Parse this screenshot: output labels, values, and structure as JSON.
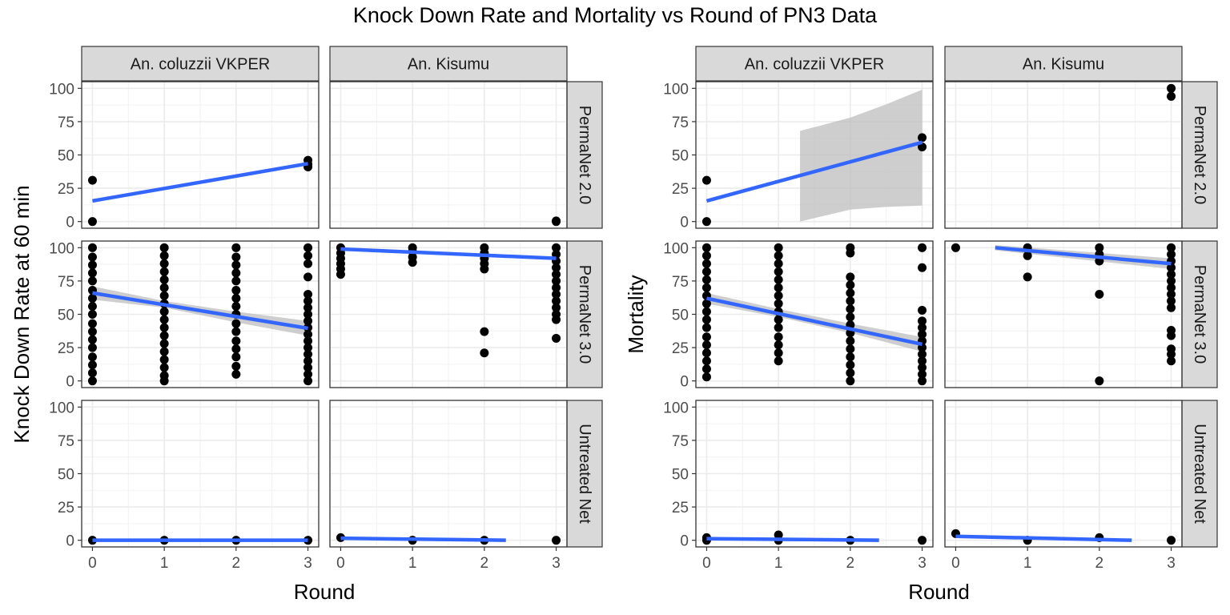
{
  "title": "Knock Down Rate and Mortality vs Round of PN3 Data",
  "colors": {
    "fit_line": "#3366FF",
    "ribbon": "#BEBEBE",
    "point": "#000000",
    "strip_bg": "#D9D9D9",
    "grid": "#EBEBEB"
  },
  "chart_data": [
    {
      "type": "scatter",
      "title": "",
      "xlabel": "Round",
      "ylabel": "Knock Down Rate at 60 min",
      "xlim": [
        0,
        3
      ],
      "ylim": [
        0,
        100
      ],
      "x_ticks": [
        0,
        1,
        2,
        3
      ],
      "y_ticks": [
        0,
        25,
        50,
        75,
        100
      ],
      "grid": true,
      "facet_columns": [
        "An. coluzzii VKPER",
        "An. Kisumu"
      ],
      "facet_rows": [
        "PermaNet 2.0",
        "PermaNet 3.0",
        "Untreated Net"
      ],
      "panels": [
        {
          "row": "PermaNet 2.0",
          "col": "An. coluzzii VKPER",
          "points": [
            [
              0,
              31
            ],
            [
              0,
              0
            ],
            [
              3,
              46
            ],
            [
              3,
              43
            ],
            [
              3,
              41
            ]
          ],
          "fit": {
            "x": [
              0,
              3
            ],
            "y": [
              15.5,
              43.5
            ]
          }
        },
        {
          "row": "PermaNet 2.0",
          "col": "An. Kisumu",
          "points": [
            [
              3,
              0
            ],
            [
              3,
              0.5
            ]
          ],
          "fit": null
        },
        {
          "row": "PermaNet 3.0",
          "col": "An. coluzzii VKPER",
          "points": [
            [
              0,
              0
            ],
            [
              0,
              6
            ],
            [
              0,
              12
            ],
            [
              0,
              18
            ],
            [
              0,
              25
            ],
            [
              0,
              31
            ],
            [
              0,
              37
            ],
            [
              0,
              43
            ],
            [
              0,
              50
            ],
            [
              0,
              56
            ],
            [
              0,
              62
            ],
            [
              0,
              68
            ],
            [
              0,
              75
            ],
            [
              0,
              81
            ],
            [
              0,
              87
            ],
            [
              0,
              93
            ],
            [
              0,
              100
            ],
            [
              1,
              0
            ],
            [
              1,
              4
            ],
            [
              1,
              10
            ],
            [
              1,
              16
            ],
            [
              1,
              22
            ],
            [
              1,
              28
            ],
            [
              1,
              34
            ],
            [
              1,
              40
            ],
            [
              1,
              46
            ],
            [
              1,
              52
            ],
            [
              1,
              58
            ],
            [
              1,
              64
            ],
            [
              1,
              70
            ],
            [
              1,
              76
            ],
            [
              1,
              82
            ],
            [
              1,
              88
            ],
            [
              1,
              94
            ],
            [
              1,
              100
            ],
            [
              2,
              5
            ],
            [
              2,
              11
            ],
            [
              2,
              18
            ],
            [
              2,
              24
            ],
            [
              2,
              30
            ],
            [
              2,
              37
            ],
            [
              2,
              43
            ],
            [
              2,
              50
            ],
            [
              2,
              56
            ],
            [
              2,
              62
            ],
            [
              2,
              68
            ],
            [
              2,
              75
            ],
            [
              2,
              81
            ],
            [
              2,
              87
            ],
            [
              2,
              93
            ],
            [
              2,
              100
            ],
            [
              3,
              0
            ],
            [
              3,
              5
            ],
            [
              3,
              10
            ],
            [
              3,
              15
            ],
            [
              3,
              20
            ],
            [
              3,
              25
            ],
            [
              3,
              30
            ],
            [
              3,
              35
            ],
            [
              3,
              40
            ],
            [
              3,
              45
            ],
            [
              3,
              50
            ],
            [
              3,
              55
            ],
            [
              3,
              60
            ],
            [
              3,
              65
            ],
            [
              3,
              78
            ],
            [
              3,
              88
            ],
            [
              3,
              94
            ],
            [
              3,
              100
            ]
          ],
          "fit": {
            "x": [
              0,
              3
            ],
            "y": [
              66,
              39.5
            ]
          },
          "ribbon": {
            "x": [
              0,
              1,
              2,
              3
            ],
            "lower": [
              61,
              55,
              44,
              34
            ],
            "upper": [
              71,
              60,
              52,
              45
            ]
          }
        },
        {
          "row": "PermaNet 3.0",
          "col": "An. Kisumu",
          "points": [
            [
              0,
              80
            ],
            [
              0,
              84
            ],
            [
              0,
              88
            ],
            [
              0,
              92
            ],
            [
              0,
              96
            ],
            [
              0,
              100
            ],
            [
              1,
              89
            ],
            [
              1,
              93
            ],
            [
              1,
              97
            ],
            [
              1,
              100
            ],
            [
              2,
              21
            ],
            [
              2,
              37
            ],
            [
              2,
              84
            ],
            [
              2,
              88
            ],
            [
              2,
              92
            ],
            [
              2,
              96
            ],
            [
              2,
              100
            ],
            [
              3,
              32
            ],
            [
              3,
              46
            ],
            [
              3,
              50
            ],
            [
              3,
              55
            ],
            [
              3,
              60
            ],
            [
              3,
              65
            ],
            [
              3,
              70
            ],
            [
              3,
              75
            ],
            [
              3,
              80
            ],
            [
              3,
              85
            ],
            [
              3,
              90
            ],
            [
              3,
              95
            ],
            [
              3,
              100
            ]
          ],
          "fit": {
            "x": [
              0,
              3
            ],
            "y": [
              99,
              92
            ]
          }
        },
        {
          "row": "Untreated Net",
          "col": "An. coluzzii VKPER",
          "points": [
            [
              0,
              0
            ],
            [
              1,
              0
            ],
            [
              2,
              0
            ],
            [
              3,
              0
            ]
          ],
          "fit": {
            "x": [
              0,
              3
            ],
            "y": [
              0,
              0
            ]
          }
        },
        {
          "row": "Untreated Net",
          "col": "An. Kisumu",
          "points": [
            [
              0,
              2
            ],
            [
              1,
              0
            ],
            [
              2,
              0
            ],
            [
              3,
              0
            ]
          ],
          "fit": {
            "x": [
              0,
              2.3
            ],
            "y": [
              1.5,
              0
            ]
          }
        }
      ]
    },
    {
      "type": "scatter",
      "title": "",
      "xlabel": "Round",
      "ylabel": "Mortality",
      "xlim": [
        0,
        3
      ],
      "ylim": [
        0,
        100
      ],
      "x_ticks": [
        0,
        1,
        2,
        3
      ],
      "y_ticks": [
        0,
        25,
        50,
        75,
        100
      ],
      "grid": true,
      "facet_columns": [
        "An. coluzzii VKPER",
        "An. Kisumu"
      ],
      "facet_rows": [
        "PermaNet 2.0",
        "PermaNet 3.0",
        "Untreated Net"
      ],
      "panels": [
        {
          "row": "PermaNet 2.0",
          "col": "An. coluzzii VKPER",
          "points": [
            [
              0,
              31
            ],
            [
              0,
              0
            ],
            [
              3,
              63
            ],
            [
              3,
              56
            ]
          ],
          "fit": {
            "x": [
              0,
              3
            ],
            "y": [
              15.5,
              59.5
            ]
          },
          "ribbon": {
            "x": [
              1.3,
              2,
              2.5,
              3
            ],
            "lower": [
              0,
              9,
              11,
              12
            ],
            "upper": [
              68,
              78,
              88,
              99
            ]
          }
        },
        {
          "row": "PermaNet 2.0",
          "col": "An. Kisumu",
          "points": [
            [
              3,
              100
            ],
            [
              3,
              94
            ]
          ],
          "fit": null
        },
        {
          "row": "PermaNet 3.0",
          "col": "An. coluzzii VKPER",
          "points": [
            [
              0,
              3
            ],
            [
              0,
              9
            ],
            [
              0,
              15
            ],
            [
              0,
              21
            ],
            [
              0,
              27
            ],
            [
              0,
              33
            ],
            [
              0,
              40
            ],
            [
              0,
              46
            ],
            [
              0,
              52
            ],
            [
              0,
              58
            ],
            [
              0,
              64
            ],
            [
              0,
              70
            ],
            [
              0,
              76
            ],
            [
              0,
              82
            ],
            [
              0,
              88
            ],
            [
              0,
              94
            ],
            [
              0,
              100
            ],
            [
              1,
              15
            ],
            [
              1,
              21
            ],
            [
              1,
              27
            ],
            [
              1,
              33
            ],
            [
              1,
              40
            ],
            [
              1,
              46
            ],
            [
              1,
              52
            ],
            [
              1,
              58
            ],
            [
              1,
              64
            ],
            [
              1,
              70
            ],
            [
              1,
              76
            ],
            [
              1,
              82
            ],
            [
              1,
              88
            ],
            [
              1,
              94
            ],
            [
              1,
              100
            ],
            [
              2,
              0
            ],
            [
              2,
              6
            ],
            [
              2,
              12
            ],
            [
              2,
              18
            ],
            [
              2,
              24
            ],
            [
              2,
              30
            ],
            [
              2,
              36
            ],
            [
              2,
              42
            ],
            [
              2,
              48
            ],
            [
              2,
              54
            ],
            [
              2,
              60
            ],
            [
              2,
              66
            ],
            [
              2,
              72
            ],
            [
              2,
              78
            ],
            [
              2,
              96
            ],
            [
              2,
              100
            ],
            [
              3,
              0
            ],
            [
              3,
              5
            ],
            [
              3,
              10
            ],
            [
              3,
              15
            ],
            [
              3,
              20
            ],
            [
              3,
              25
            ],
            [
              3,
              30
            ],
            [
              3,
              35
            ],
            [
              3,
              40
            ],
            [
              3,
              45
            ],
            [
              3,
              53
            ],
            [
              3,
              85
            ],
            [
              3,
              100
            ]
          ],
          "fit": {
            "x": [
              0,
              3
            ],
            "y": [
              62,
              27.5
            ]
          },
          "ribbon": {
            "x": [
              0,
              1,
              2,
              3
            ],
            "lower": [
              58,
              48,
              36,
              22
            ],
            "upper": [
              66,
              54,
              43,
              33
            ]
          }
        },
        {
          "row": "PermaNet 3.0",
          "col": "An. Kisumu",
          "points": [
            [
              0,
              100
            ],
            [
              1,
              78
            ],
            [
              1,
              94
            ],
            [
              1,
              100
            ],
            [
              2,
              0
            ],
            [
              2,
              65
            ],
            [
              2,
              90
            ],
            [
              2,
              95
            ],
            [
              2,
              100
            ],
            [
              3,
              15
            ],
            [
              3,
              20
            ],
            [
              3,
              24
            ],
            [
              3,
              34
            ],
            [
              3,
              38
            ],
            [
              3,
              55
            ],
            [
              3,
              60
            ],
            [
              3,
              65
            ],
            [
              3,
              70
            ],
            [
              3,
              75
            ],
            [
              3,
              80
            ],
            [
              3,
              85
            ],
            [
              3,
              90
            ],
            [
              3,
              95
            ],
            [
              3,
              100
            ]
          ],
          "fit": {
            "x": [
              0.55,
              3
            ],
            "y": [
              100,
              88
            ]
          },
          "ribbon": {
            "x": [
              0.55,
              3
            ],
            "lower": [
              98,
              84
            ],
            "upper": [
              102,
              92
            ]
          }
        },
        {
          "row": "Untreated Net",
          "col": "An. coluzzii VKPER",
          "points": [
            [
              0,
              2
            ],
            [
              0,
              0
            ],
            [
              1,
              4
            ],
            [
              1,
              0
            ],
            [
              2,
              0
            ],
            [
              3,
              0
            ]
          ],
          "fit": {
            "x": [
              0,
              2.4
            ],
            "y": [
              1.2,
              0
            ]
          }
        },
        {
          "row": "Untreated Net",
          "col": "An. Kisumu",
          "points": [
            [
              0,
              5
            ],
            [
              1,
              0
            ],
            [
              2,
              2
            ],
            [
              3,
              0
            ]
          ],
          "fit": {
            "x": [
              0,
              2.45
            ],
            "y": [
              3,
              0
            ]
          }
        }
      ]
    }
  ]
}
